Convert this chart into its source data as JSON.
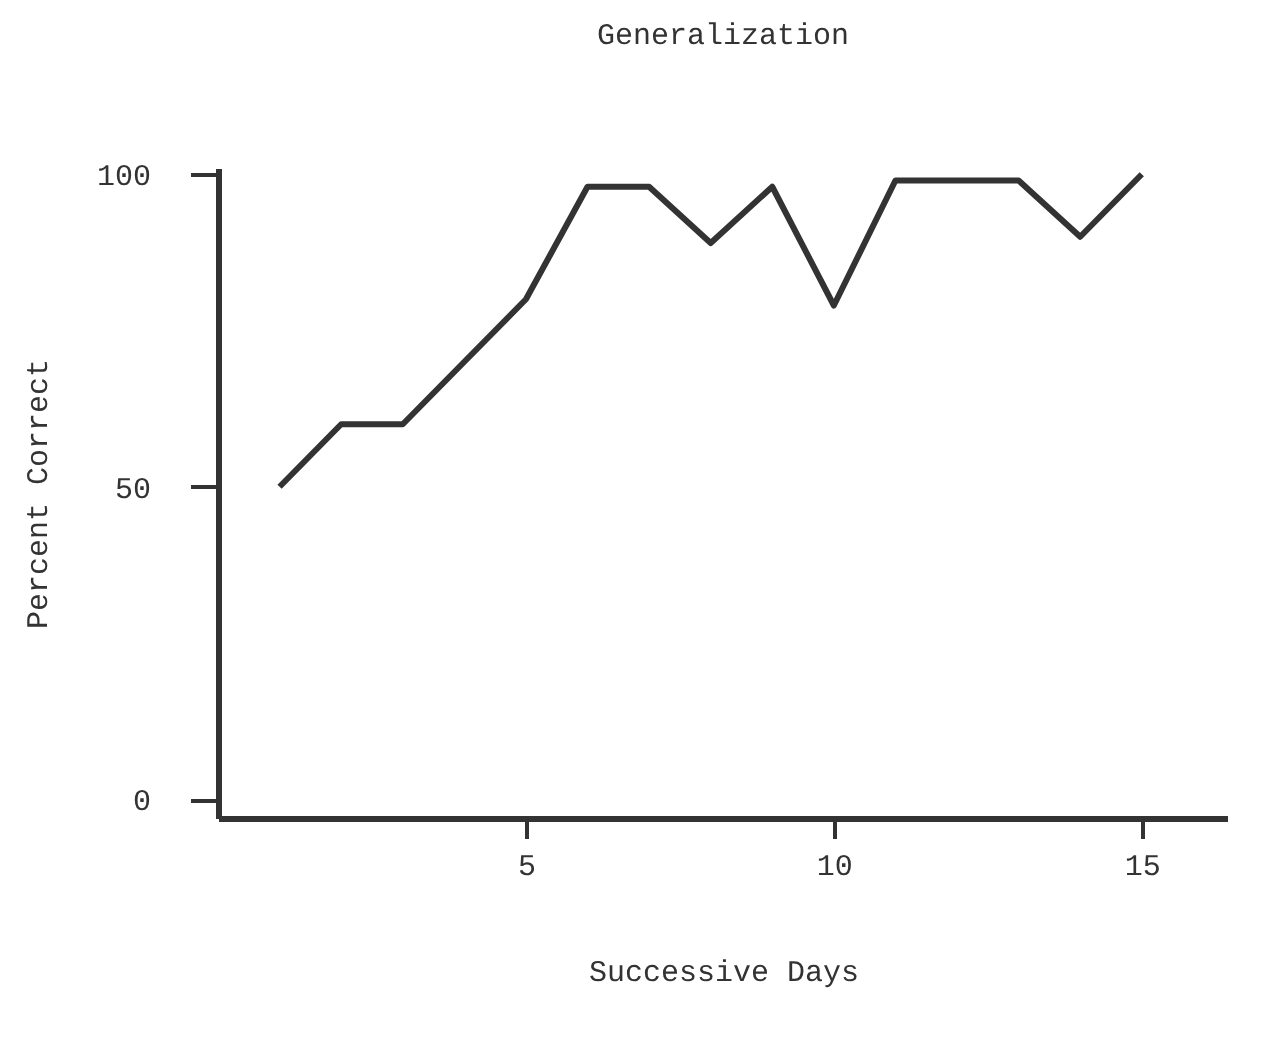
{
  "chart_data": {
    "type": "line",
    "title": "Generalization",
    "xlabel": "Successive Days",
    "ylabel": "Percent Correct",
    "x": [
      1,
      2,
      3,
      4,
      5,
      6,
      7,
      8,
      9,
      10,
      11,
      12,
      13,
      14,
      15
    ],
    "series": [
      {
        "color": "#333333",
        "values": [
          50,
          60,
          60,
          70,
          80,
          98,
          98,
          89,
          98,
          79,
          99,
          99,
          99,
          90,
          100
        ]
      }
    ],
    "xlim": [
      0,
      16.4
    ],
    "xticks": [
      5,
      10,
      15
    ],
    "ylim": [
      -3,
      101
    ],
    "yticks": [
      0,
      50,
      100
    ],
    "grid": false,
    "marker": "none",
    "line_style": "solid"
  }
}
